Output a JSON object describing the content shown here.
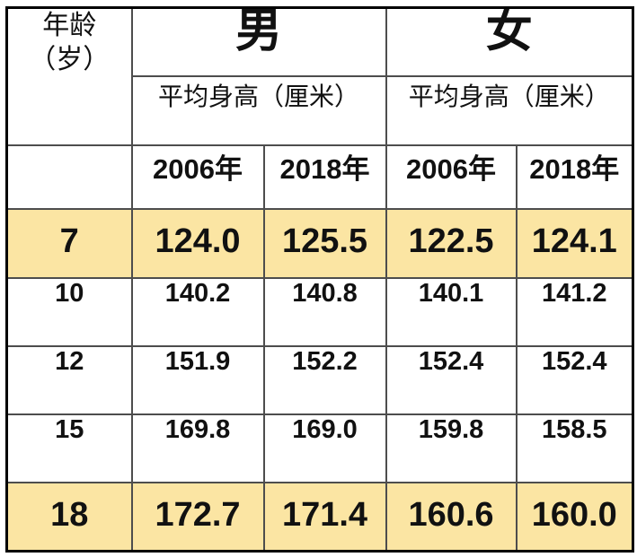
{
  "table": {
    "age_header_line1": "年龄",
    "age_header_line2": "（岁）",
    "male_header": "男",
    "female_header": "女",
    "male_subheader": "平均身高（厘米）",
    "female_subheader": "平均身高（厘米）",
    "male_year_2006": "2006年",
    "male_year_2018": "2018年",
    "female_year_2006": "2006年",
    "female_year_2018": "2018年",
    "rows": [
      {
        "age": "7",
        "m2006": "124.0",
        "m2018": "125.5",
        "f2006": "122.5",
        "f2018": "124.1"
      },
      {
        "age": "10",
        "m2006": "140.2",
        "m2018": "140.8",
        "f2006": "140.1",
        "f2018": "141.2"
      },
      {
        "age": "12",
        "m2006": "151.9",
        "m2018": "152.2",
        "f2006": "152.4",
        "f2018": "152.4"
      },
      {
        "age": "15",
        "m2006": "169.8",
        "m2018": "169.0",
        "f2006": "159.8",
        "f2018": "158.5"
      },
      {
        "age": "18",
        "m2006": "172.7",
        "m2018": "171.4",
        "f2006": "160.6",
        "f2018": "160.0"
      }
    ]
  },
  "colors": {
    "male_2006_text": "#21a9e1",
    "female_2006_text": "#ee1111",
    "highlight_row_bg": "#fbe5a3",
    "grid_border": "#4d4d4d",
    "outer_border": "#000000"
  },
  "chart_data": {
    "type": "table",
    "title": "男女平均身高（厘米）对比 2006年 vs 2018年",
    "columns": [
      "年龄（岁）",
      "男 平均身高（厘米）2006年",
      "男 平均身高（厘米）2018年",
      "女 平均身高（厘米）2006年",
      "女 平均身高（厘米）2018年"
    ],
    "ages": [
      7,
      10,
      12,
      15,
      18
    ],
    "series": [
      {
        "name": "男 2006年",
        "values": [
          124.0,
          140.2,
          151.9,
          169.8,
          172.7
        ]
      },
      {
        "name": "男 2018年",
        "values": [
          125.5,
          140.8,
          152.2,
          169.0,
          171.4
        ]
      },
      {
        "name": "女 2006年",
        "values": [
          122.5,
          140.1,
          152.4,
          159.8,
          160.6
        ]
      },
      {
        "name": "女 2018年",
        "values": [
          124.1,
          141.2,
          152.4,
          158.5,
          160.0
        ]
      }
    ],
    "highlighted_ages": [
      7,
      18
    ],
    "legend_position": "none",
    "grid": true
  }
}
